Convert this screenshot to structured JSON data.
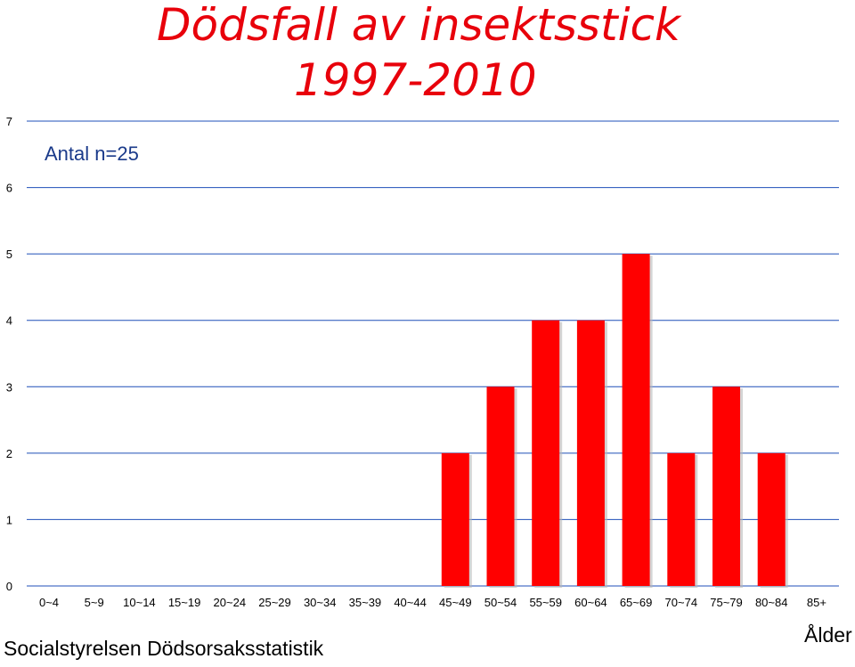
{
  "chart_data": {
    "type": "bar",
    "title_line1": "Dödsfall av insektsstick",
    "title_line2": "1997-2010",
    "subtitle": "Antal n=25",
    "xlabel": "Ålder",
    "source": "Socialstyrelsen  Dödsorsaksstatistik",
    "categories": [
      "0~4",
      "5~9",
      "10~14",
      "15~19",
      "20~24",
      "25~29",
      "30~34",
      "35~39",
      "40~44",
      "45~49",
      "50~54",
      "55~59",
      "60~64",
      "65~69",
      "70~74",
      "75~79",
      "80~84",
      "85+"
    ],
    "values": [
      0,
      0,
      0,
      0,
      0,
      0,
      0,
      0,
      0,
      2,
      3,
      4,
      4,
      5,
      2,
      3,
      2,
      0
    ],
    "ylim": [
      0,
      7
    ],
    "yticks": [
      0,
      1,
      2,
      3,
      4,
      5,
      6,
      7
    ],
    "grid": true,
    "bar_color": "#ff0000",
    "grid_color": "#1f4fb8",
    "title_color": "#e8000b",
    "subtitle_color": "#1a3a8a"
  }
}
